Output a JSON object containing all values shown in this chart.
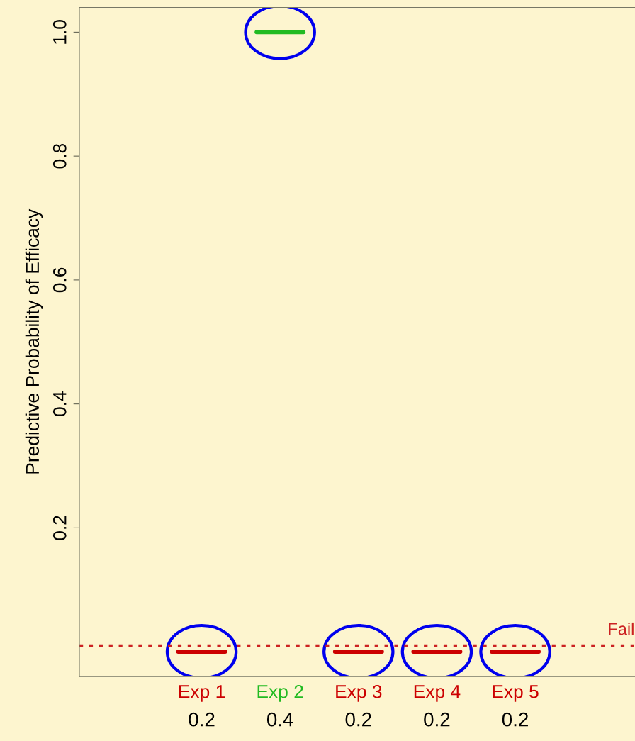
{
  "chart_data": {
    "type": "box",
    "ylabel": "Predictive Probability of Efficacy",
    "categories": [
      "Exp 1",
      "Exp 2",
      "Exp 3",
      "Exp 4",
      "Exp 5"
    ],
    "boxes": [
      {
        "low": 0,
        "q1": 0,
        "median": 0,
        "q3": 0,
        "high": 0
      },
      {
        "low": 1,
        "q1": 1,
        "median": 1,
        "q3": 1,
        "high": 1
      },
      {
        "low": 0,
        "q1": 0,
        "median": 0,
        "q3": 0,
        "high": 0
      },
      {
        "low": 0,
        "q1": 0,
        "median": 0,
        "q3": 0,
        "high": 0
      },
      {
        "low": 0,
        "q1": 0,
        "median": 0,
        "q3": 0,
        "high": 0
      }
    ],
    "colors": [
      "#cc0000",
      "#22bb22",
      "#cc0000",
      "#cc0000",
      "#cc0000"
    ],
    "annotations": [
      "0.2",
      "0.4",
      "0.2",
      "0.2",
      "0.2"
    ],
    "ylim": [
      -0.04,
      1.04
    ],
    "yticks": [
      0.2,
      0.4,
      0.6,
      0.8,
      {
        "value": 1,
        "label": "1.0"
      }
    ],
    "ref_lines": [
      {
        "axis": "y",
        "value": 0.01,
        "label": "Fail",
        "color": "#cc2222",
        "line_style": "dotted"
      }
    ],
    "grid": false,
    "legend": false
  }
}
